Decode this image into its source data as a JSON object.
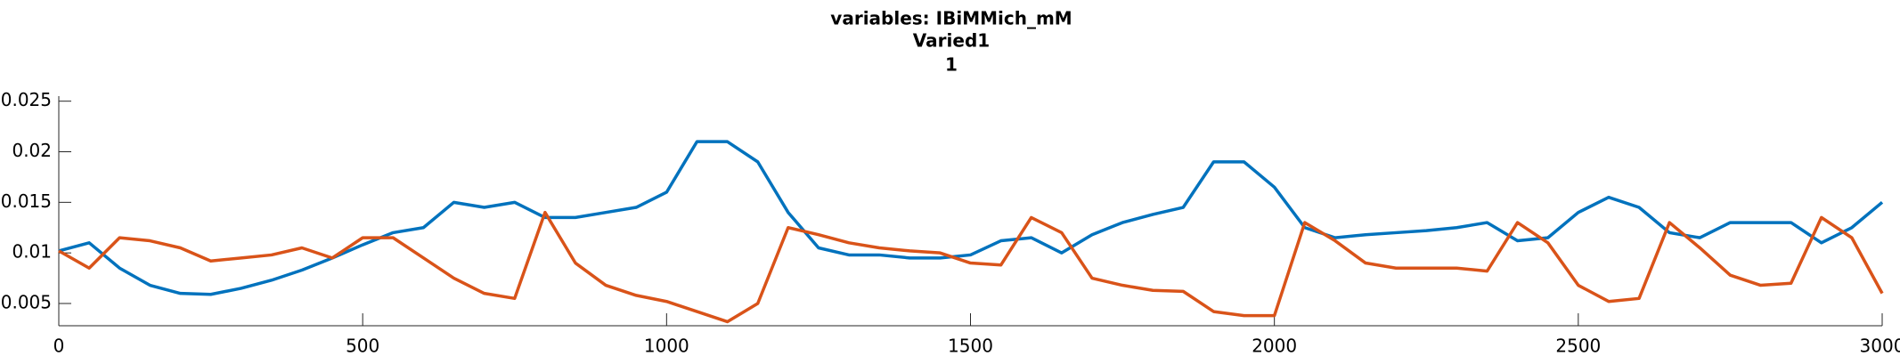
{
  "chart_data": {
    "type": "line",
    "title": "variables: IBiMMich_mM",
    "subtitle": "Varied1",
    "subtitle2": "1",
    "x": [
      0,
      50,
      100,
      150,
      200,
      250,
      300,
      350,
      400,
      450,
      500,
      550,
      600,
      650,
      700,
      750,
      800,
      850,
      900,
      950,
      1000,
      1050,
      1100,
      1150,
      1200,
      1250,
      1300,
      1350,
      1400,
      1450,
      1500,
      1550,
      1600,
      1650,
      1700,
      1750,
      1800,
      1850,
      1900,
      1950,
      2000,
      2050,
      2100,
      2150,
      2200,
      2250,
      2300,
      2350,
      2400,
      2450,
      2500,
      2550,
      2600,
      2650,
      2700,
      2750,
      2800,
      2850,
      2900,
      2950,
      3000
    ],
    "series": [
      {
        "color": "#0072bd",
        "values": [
          0.0102,
          0.011,
          0.0085,
          0.0068,
          0.006,
          0.0059,
          0.0065,
          0.0073,
          0.0083,
          0.0095,
          0.0108,
          0.012,
          0.0125,
          0.015,
          0.0145,
          0.015,
          0.0135,
          0.0135,
          0.014,
          0.0145,
          0.016,
          0.021,
          0.021,
          0.019,
          0.014,
          0.0105,
          0.0098,
          0.0098,
          0.0095,
          0.0095,
          0.0098,
          0.0112,
          0.0115,
          0.01,
          0.0118,
          0.013,
          0.0138,
          0.0145,
          0.019,
          0.019,
          0.0165,
          0.0125,
          0.0115,
          0.0118,
          0.012,
          0.0122,
          0.0125,
          0.013,
          0.0112,
          0.0115,
          0.014,
          0.0155,
          0.0145,
          0.012,
          0.0115,
          0.013,
          0.013,
          0.013,
          0.011,
          0.0125,
          0.015
        ]
      },
      {
        "color": "#d95319",
        "values": [
          0.0102,
          0.0085,
          0.0115,
          0.0112,
          0.0105,
          0.0092,
          0.0095,
          0.0098,
          0.0105,
          0.0095,
          0.0115,
          0.0115,
          0.0095,
          0.0075,
          0.006,
          0.0055,
          0.014,
          0.009,
          0.0068,
          0.0058,
          0.0052,
          0.0042,
          0.0032,
          0.005,
          0.0125,
          0.0118,
          0.011,
          0.0105,
          0.0102,
          0.01,
          0.009,
          0.0088,
          0.0135,
          0.012,
          0.0075,
          0.0068,
          0.0063,
          0.0062,
          0.0042,
          0.0038,
          0.0038,
          0.013,
          0.0112,
          0.009,
          0.0085,
          0.0085,
          0.0085,
          0.0082,
          0.013,
          0.011,
          0.0068,
          0.0052,
          0.0055,
          0.013,
          0.0105,
          0.0078,
          0.0068,
          0.007,
          0.0135,
          0.0115,
          0.006
        ]
      }
    ],
    "xlim": [
      0,
      3000
    ],
    "xticks": [
      0,
      500,
      1000,
      1500,
      2000,
      2500,
      3000
    ],
    "ylim": [
      0.0028,
      0.0255
    ],
    "yticks": [
      0.005,
      0.01,
      0.015,
      0.02,
      0.025
    ],
    "grid": false
  }
}
